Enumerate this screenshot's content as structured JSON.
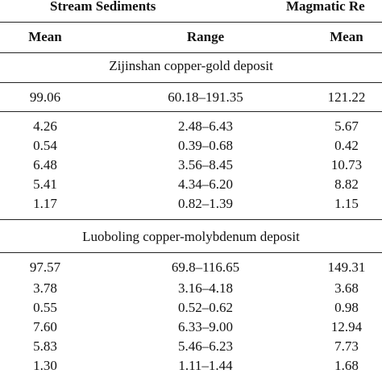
{
  "header": {
    "group_left": "Stream Sediments",
    "group_right": "Magmatic Re",
    "col_mean": "Mean",
    "col_range": "Range",
    "col_mean2": "Mean"
  },
  "sections": [
    {
      "title": "Zijinshan copper-gold deposit",
      "first_row": {
        "mean": "99.06",
        "range": "60.18–191.35",
        "mean2": "121.22"
      },
      "rows": [
        {
          "mean": "4.26",
          "range": "2.48–6.43",
          "mean2": "5.67"
        },
        {
          "mean": "0.54",
          "range": "0.39–0.68",
          "mean2": "0.42"
        },
        {
          "mean": "6.48",
          "range": "3.56–8.45",
          "mean2": "10.73"
        },
        {
          "mean": "5.41",
          "range": "4.34–6.20",
          "mean2": "8.82"
        },
        {
          "mean": "1.17",
          "range": "0.82–1.39",
          "mean2": "1.15"
        }
      ]
    },
    {
      "title": "Luoboling copper-molybdenum deposit",
      "first_row": {
        "mean": "97.57",
        "range": "69.8–116.65",
        "mean2": "149.31"
      },
      "rows": [
        {
          "mean": "3.78",
          "range": "3.16–4.18",
          "mean2": "3.68"
        },
        {
          "mean": "0.55",
          "range": "0.52–0.62",
          "mean2": "0.98"
        },
        {
          "mean": "7.60",
          "range": "6.33–9.00",
          "mean2": "12.94"
        },
        {
          "mean": "5.83",
          "range": "5.46–6.23",
          "mean2": "7.73"
        },
        {
          "mean": "1.30",
          "range": "1.11–1.44",
          "mean2": "1.68"
        }
      ]
    }
  ]
}
